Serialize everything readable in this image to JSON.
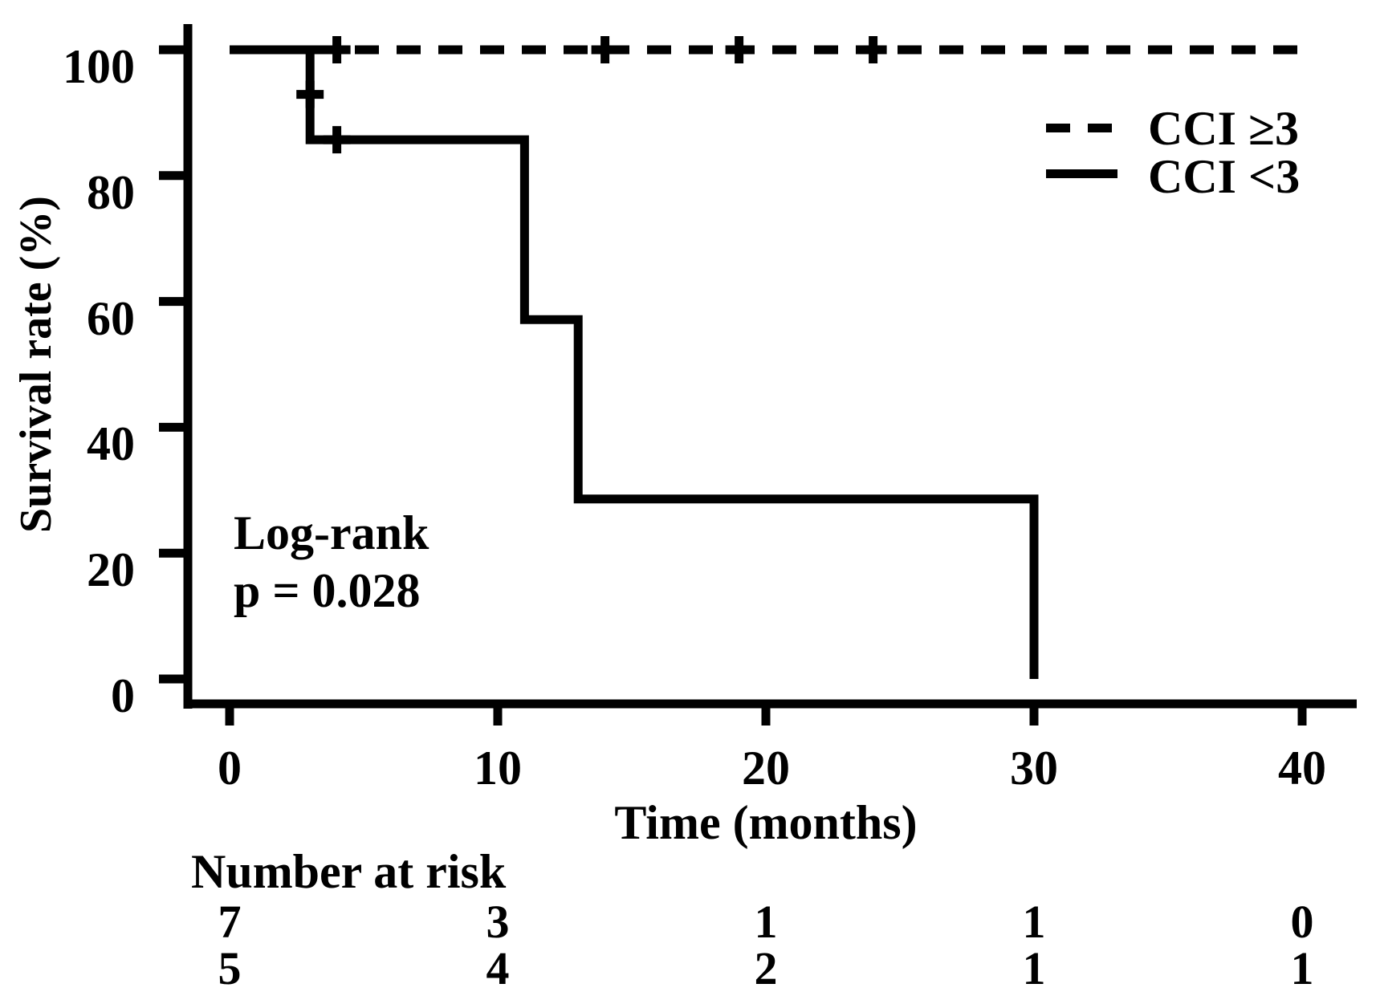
{
  "figure": {
    "background_color": "#ffffff",
    "ink_color": "#000000"
  },
  "chart_data": {
    "type": "line",
    "subtype": "kaplan-meier-step",
    "title": "",
    "xlabel": "Time (months)",
    "ylabel": "Survival rate (%)",
    "xlim": [
      0,
      40
    ],
    "ylim": [
      0,
      100
    ],
    "x_ticks": [
      0,
      10,
      20,
      30,
      40
    ],
    "y_ticks": [
      100,
      80,
      60,
      40,
      20,
      0
    ],
    "grid": "off",
    "legend_position": "upper-right-inside",
    "legend": [
      {
        "label": "CCI ≥3",
        "style": "dashed"
      },
      {
        "label": "CCI <3",
        "style": "solid"
      }
    ],
    "annotation": {
      "line1": "Log-rank",
      "line2": "p = 0.028"
    },
    "series": [
      {
        "name": "CCI ≥3",
        "style": "dashed",
        "steps": [
          [
            0,
            100
          ],
          [
            40,
            100
          ]
        ],
        "censors": [
          [
            4,
            100
          ],
          [
            14,
            100
          ],
          [
            19,
            100
          ],
          [
            24,
            100
          ]
        ]
      },
      {
        "name": "CCI <3",
        "style": "solid",
        "steps": [
          [
            0,
            100
          ],
          [
            3,
            100
          ],
          [
            3,
            85.7
          ],
          [
            11,
            85.7
          ],
          [
            11,
            57.1
          ],
          [
            13,
            57.1
          ],
          [
            13,
            28.6
          ],
          [
            30,
            28.6
          ],
          [
            30,
            0
          ]
        ],
        "censors": [
          [
            3,
            92.9
          ],
          [
            4,
            85.7
          ]
        ]
      }
    ],
    "number_at_risk": {
      "title": "Number at risk",
      "columns": [
        0,
        10,
        20,
        30,
        40
      ],
      "rows": [
        [
          7,
          3,
          1,
          1,
          0
        ],
        [
          5,
          4,
          2,
          1,
          1
        ]
      ]
    }
  }
}
